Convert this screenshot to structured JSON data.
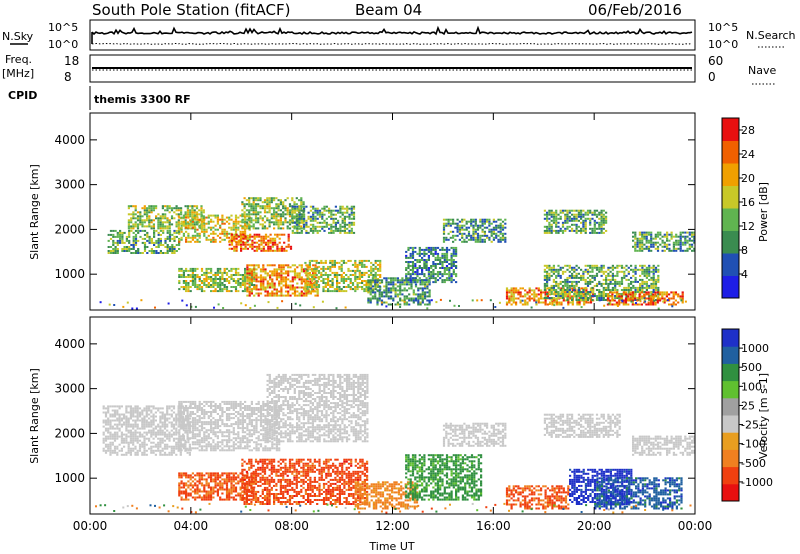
{
  "header": {
    "title": "South Pole Station (fitACF)",
    "beam": "Beam 04",
    "date": "06/Feb/2016"
  },
  "top_strip": {
    "nsky_label": "N.Sky",
    "nsearch_label": "N.Search",
    "noise_tick_high": "10^5",
    "noise_tick_low": "10^0",
    "freq_label": "Freq.",
    "freq_unit": "[MHz]",
    "freq_ticks": [
      "18",
      "8"
    ],
    "nave_label": "Nave",
    "nave_ticks": [
      "60",
      "0"
    ],
    "cpid_label": "CPID",
    "cpid_text": "themis 3300 RF"
  },
  "colors": {
    "power_scale": [
      "#1e1ee6",
      "#2050b4",
      "#3a8c50",
      "#60b450",
      "#c8c828",
      "#f0a000",
      "#f06000",
      "#e81010"
    ],
    "velocity_scale": [
      "#e81010",
      "#f04010",
      "#f08020",
      "#e89e20",
      "#c8c8c8",
      "#a0a0a0",
      "#60c030",
      "#309040",
      "#2060a0",
      "#1e30c8"
    ]
  },
  "chart_data": [
    {
      "type": "heatmap",
      "name": "power",
      "ylabel": "Slant Range [km]",
      "xlabel": "",
      "yticks": [
        "1000",
        "2000",
        "3000",
        "4000"
      ],
      "ylim": [
        200,
        4600
      ],
      "xticks": [
        "00:00",
        "04:00",
        "08:00",
        "12:00",
        "16:00",
        "20:00",
        "00:00"
      ],
      "xlim": [
        0,
        24
      ],
      "colorbar": {
        "label": "Power [dB]",
        "ticks": [
          "4",
          "8",
          "12",
          "16",
          "20",
          "24",
          "28"
        ],
        "range": [
          0,
          30
        ]
      },
      "regions": [
        {
          "t0": 0.7,
          "t1": 3.5,
          "r0": 1450,
          "r1": 1950,
          "level": 12
        },
        {
          "t0": 1.5,
          "t1": 4.5,
          "r0": 2000,
          "r1": 2500,
          "level": 14
        },
        {
          "t0": 3.5,
          "t1": 6.3,
          "r0": 1700,
          "r1": 2300,
          "level": 18
        },
        {
          "t0": 5.5,
          "t1": 8.0,
          "r0": 1500,
          "r1": 1900,
          "level": 24
        },
        {
          "t0": 6.0,
          "t1": 8.5,
          "r0": 2000,
          "r1": 2700,
          "level": 14
        },
        {
          "t0": 8.0,
          "t1": 10.5,
          "r0": 1900,
          "r1": 2500,
          "level": 12
        },
        {
          "t0": 3.5,
          "t1": 6.5,
          "r0": 600,
          "r1": 1100,
          "level": 14
        },
        {
          "t0": 6.2,
          "t1": 9.0,
          "r0": 500,
          "r1": 1200,
          "level": 22
        },
        {
          "t0": 8.5,
          "t1": 11.5,
          "r0": 600,
          "r1": 1300,
          "level": 16
        },
        {
          "t0": 11.0,
          "t1": 13.5,
          "r0": 300,
          "r1": 900,
          "level": 10
        },
        {
          "t0": 12.5,
          "t1": 14.5,
          "r0": 800,
          "r1": 1600,
          "level": 9
        },
        {
          "t0": 14.0,
          "t1": 16.5,
          "r0": 1700,
          "r1": 2200,
          "level": 10
        },
        {
          "t0": 16.5,
          "t1": 20.0,
          "r0": 300,
          "r1": 700,
          "level": 22
        },
        {
          "t0": 18.0,
          "t1": 22.5,
          "r0": 400,
          "r1": 1200,
          "level": 12
        },
        {
          "t0": 20.5,
          "t1": 23.5,
          "r0": 300,
          "r1": 600,
          "level": 24
        },
        {
          "t0": 21.5,
          "t1": 24.0,
          "r0": 1500,
          "r1": 1950,
          "level": 11
        },
        {
          "t0": 18.0,
          "t1": 20.5,
          "r0": 1900,
          "r1": 2400,
          "level": 12
        }
      ]
    },
    {
      "type": "heatmap",
      "name": "velocity",
      "ylabel": "Slant Range [km]",
      "xlabel": "Time UT",
      "yticks": [
        "1000",
        "2000",
        "3000",
        "4000"
      ],
      "ylim": [
        200,
        4600
      ],
      "xticks": [
        "00:00",
        "04:00",
        "08:00",
        "12:00",
        "16:00",
        "20:00",
        "00:00"
      ],
      "xlim": [
        0,
        24
      ],
      "colorbar": {
        "label": "Velocity [m s-1]",
        "ticks": [
          "1000",
          "500",
          "100",
          "25",
          "-25",
          "-100",
          "-500",
          "-1000"
        ],
        "range": [
          -1200,
          1200
        ]
      },
      "regions": [
        {
          "t0": 0.5,
          "t1": 4.0,
          "r0": 1500,
          "r1": 2600,
          "level": 0
        },
        {
          "t0": 3.5,
          "t1": 7.5,
          "r0": 1600,
          "r1": 2700,
          "level": 0
        },
        {
          "t0": 7.0,
          "t1": 11.0,
          "r0": 1800,
          "r1": 3300,
          "level": 0
        },
        {
          "t0": 3.5,
          "t1": 6.5,
          "r0": 500,
          "r1": 1100,
          "level": -300
        },
        {
          "t0": 6.0,
          "t1": 11.0,
          "r0": 400,
          "r1": 1400,
          "level": -350
        },
        {
          "t0": 10.5,
          "t1": 13.0,
          "r0": 300,
          "r1": 900,
          "level": -150
        },
        {
          "t0": 12.5,
          "t1": 15.5,
          "r0": 500,
          "r1": 1500,
          "level": 150
        },
        {
          "t0": 14.0,
          "t1": 16.5,
          "r0": 1700,
          "r1": 2200,
          "level": 0
        },
        {
          "t0": 16.5,
          "t1": 19.0,
          "r0": 300,
          "r1": 800,
          "level": -300
        },
        {
          "t0": 19.0,
          "t1": 21.5,
          "r0": 400,
          "r1": 1200,
          "level": 800
        },
        {
          "t0": 20.0,
          "t1": 23.5,
          "r0": 300,
          "r1": 1000,
          "level": 400
        },
        {
          "t0": 21.5,
          "t1": 24.0,
          "r0": 1500,
          "r1": 1950,
          "level": 0
        },
        {
          "t0": 18.0,
          "t1": 21.0,
          "r0": 1900,
          "r1": 2400,
          "level": 0
        }
      ]
    }
  ]
}
